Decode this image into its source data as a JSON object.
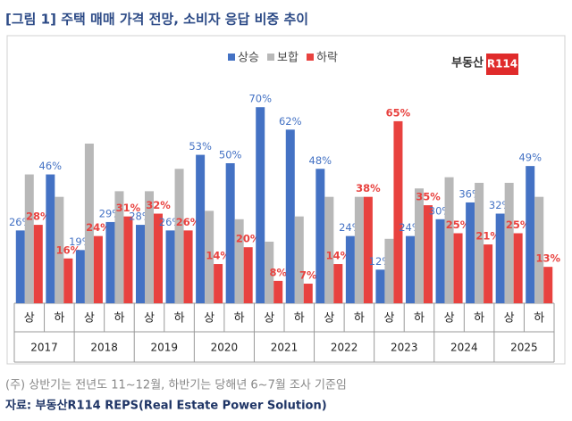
{
  "chart_data": {
    "type": "bar",
    "title": "[그림 1] 주택 매매 가격 전망, 소비자 응답 비중 추이",
    "logo": {
      "text": "부동산",
      "badge": "R114"
    },
    "categories": [
      "상",
      "하",
      "상",
      "하",
      "상",
      "하",
      "상",
      "하",
      "상",
      "하",
      "상",
      "하",
      "상",
      "하",
      "상",
      "하",
      "상",
      "하"
    ],
    "years": [
      "2017",
      "2018",
      "2019",
      "2020",
      "2021",
      "2022",
      "2023",
      "2024",
      "2025"
    ],
    "series": [
      {
        "name": "상승",
        "color": "#4472c4",
        "values": [
          26,
          46,
          19,
          29,
          28,
          26,
          53,
          50,
          70,
          62,
          48,
          24,
          12,
          24,
          30,
          36,
          32,
          49
        ],
        "value_labels": [
          "26%",
          "46%",
          "19%",
          "29%",
          "28%",
          "26%",
          "53%",
          "50%",
          "70%",
          "62%",
          "48%",
          "24%",
          "12%",
          "24%",
          "30%",
          "36%",
          "32%",
          "49%"
        ]
      },
      {
        "name": "보합",
        "color": "#b8b8b8",
        "values": [
          46,
          38,
          57,
          40,
          40,
          48,
          33,
          30,
          22,
          31,
          38,
          38,
          23,
          41,
          45,
          43,
          43,
          38
        ]
      },
      {
        "name": "하락",
        "color": "#e8423f",
        "values": [
          28,
          16,
          24,
          31,
          32,
          26,
          14,
          20,
          8,
          7,
          14,
          38,
          65,
          35,
          25,
          21,
          25,
          13
        ],
        "value_labels": [
          "28%",
          "16%",
          "24%",
          "31%",
          "32%",
          "26%",
          "14%",
          "20%",
          "8%",
          "7%",
          "14%",
          "38%",
          "65%",
          "35%",
          "25%",
          "21%",
          "25%",
          "13%"
        ]
      }
    ],
    "ylim": [
      0,
      100
    ],
    "note": "(주) 상반기는 전년도 11~12월, 하반기는 당해년 6~7월 조사 기준임",
    "source": "자료: 부동산R114 REPS(Real Estate Power Solution)"
  }
}
